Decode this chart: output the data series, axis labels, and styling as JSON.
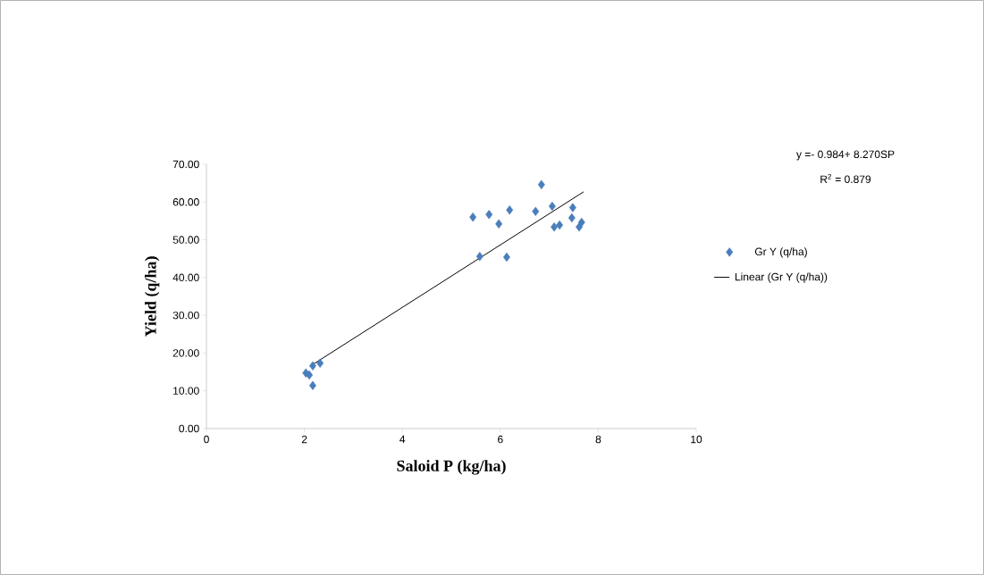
{
  "chart_data": {
    "type": "scatter",
    "xlabel": "Saloid P (kg/ha)",
    "ylabel": "Yield (q/ha)",
    "xlim": [
      0,
      10
    ],
    "xticks": [
      0,
      2,
      4,
      6,
      8,
      10
    ],
    "ylim": [
      0,
      70
    ],
    "yticks": [
      {
        "value": 0,
        "label": "0.00"
      },
      {
        "value": 10,
        "label": "10.00"
      },
      {
        "value": 20,
        "label": "20.00"
      },
      {
        "value": 30,
        "label": "30.00"
      },
      {
        "value": 40,
        "label": "40.00"
      },
      {
        "value": 50,
        "label": "50.00"
      },
      {
        "value": 60,
        "label": "60.00"
      },
      {
        "value": 70,
        "label": "70.00"
      }
    ],
    "grid": false,
    "legend": "right",
    "marker": "diamond",
    "annotations": [
      "y =- 0.984+ 8.270SP",
      "R$^{2}$ = 0.879"
    ],
    "series": [
      {
        "name": "Gr Y (q/ha)",
        "color": "#4a7ebb",
        "x": [
          5.44,
          5.77,
          5.97,
          6.19,
          5.58,
          6.13,
          6.84,
          6.72,
          7.06,
          7.48,
          7.46,
          7.61,
          7.66,
          7.1,
          7.21,
          2.03,
          2.17,
          2.32,
          2.17,
          2.1
        ],
        "values": [
          56.0,
          56.7,
          54.2,
          57.9,
          45.6,
          45.4,
          64.6,
          57.5,
          58.9,
          58.5,
          55.8,
          53.4,
          54.6,
          53.4,
          53.9,
          14.7,
          16.6,
          17.3,
          11.4,
          14.2
        ]
      },
      {
        "name": "Linear (Gr Y (q/ha))",
        "type": "line",
        "marker": "none",
        "color": "#000000",
        "x": [
          2.15,
          7.7
        ],
        "values": [
          16.8,
          62.7
        ]
      }
    ]
  }
}
